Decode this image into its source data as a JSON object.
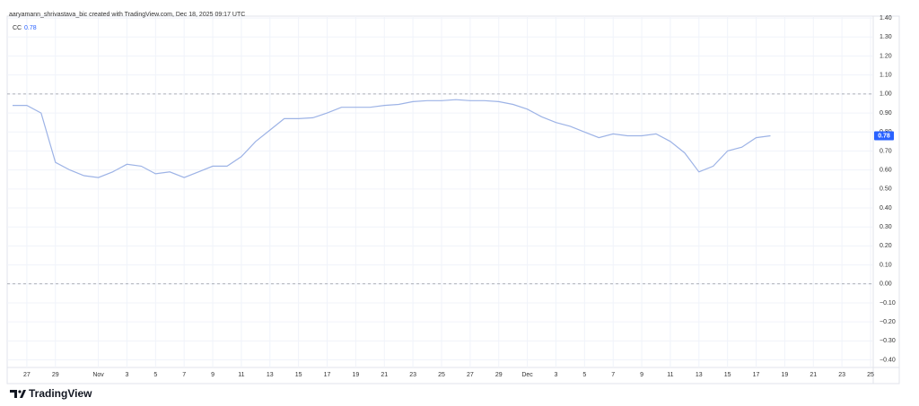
{
  "header": {
    "attribution": "aaryamann_shrivastava_bic created with TradingView.com, Dec 18, 2025 09:17 UTC"
  },
  "footer": {
    "brand": "TradingView"
  },
  "chart_data": {
    "type": "line",
    "x": [
      "2025-10-26",
      "2025-10-27",
      "2025-10-28",
      "2025-10-29",
      "2025-10-30",
      "2025-10-31",
      "2025-11-01",
      "2025-11-02",
      "2025-11-03",
      "2025-11-04",
      "2025-11-05",
      "2025-11-06",
      "2025-11-07",
      "2025-11-08",
      "2025-11-09",
      "2025-11-10",
      "2025-11-11",
      "2025-11-12",
      "2025-11-13",
      "2025-11-14",
      "2025-11-15",
      "2025-11-16",
      "2025-11-17",
      "2025-11-18",
      "2025-11-19",
      "2025-11-20",
      "2025-11-21",
      "2025-11-22",
      "2025-11-23",
      "2025-11-24",
      "2025-11-25",
      "2025-11-26",
      "2025-11-27",
      "2025-11-28",
      "2025-11-29",
      "2025-11-30",
      "2025-12-01",
      "2025-12-02",
      "2025-12-03",
      "2025-12-04",
      "2025-12-05",
      "2025-12-06",
      "2025-12-07",
      "2025-12-08",
      "2025-12-09",
      "2025-12-10",
      "2025-12-11",
      "2025-12-12",
      "2025-12-13",
      "2025-12-14",
      "2025-12-15",
      "2025-12-16",
      "2025-12-17",
      "2025-12-18"
    ],
    "series": [
      {
        "name": "CC",
        "color": "#9db3e6",
        "values": [
          0.94,
          0.94,
          0.9,
          0.64,
          0.6,
          0.57,
          0.56,
          0.59,
          0.63,
          0.62,
          0.58,
          0.59,
          0.56,
          0.59,
          0.62,
          0.62,
          0.67,
          0.75,
          0.81,
          0.87,
          0.87,
          0.875,
          0.9,
          0.93,
          0.93,
          0.93,
          0.94,
          0.945,
          0.96,
          0.965,
          0.965,
          0.97,
          0.965,
          0.965,
          0.96,
          0.945,
          0.92,
          0.88,
          0.85,
          0.83,
          0.8,
          0.77,
          0.79,
          0.78,
          0.78,
          0.79,
          0.75,
          0.69,
          0.59,
          0.62,
          0.7,
          0.72,
          0.77,
          0.78
        ]
      }
    ],
    "xlim": [
      "2025-10-25T15:00:00Z",
      "2025-12-25T03:00:00Z"
    ],
    "xticks": [
      {
        "value": "2025-10-27",
        "label": "27"
      },
      {
        "value": "2025-10-29",
        "label": "29"
      },
      {
        "value": "2025-11-01",
        "label": "Nov"
      },
      {
        "value": "2025-11-03",
        "label": "3"
      },
      {
        "value": "2025-11-05",
        "label": "5"
      },
      {
        "value": "2025-11-07",
        "label": "7"
      },
      {
        "value": "2025-11-09",
        "label": "9"
      },
      {
        "value": "2025-11-11",
        "label": "11"
      },
      {
        "value": "2025-11-13",
        "label": "13"
      },
      {
        "value": "2025-11-15",
        "label": "15"
      },
      {
        "value": "2025-11-17",
        "label": "17"
      },
      {
        "value": "2025-11-19",
        "label": "19"
      },
      {
        "value": "2025-11-21",
        "label": "21"
      },
      {
        "value": "2025-11-23",
        "label": "23"
      },
      {
        "value": "2025-11-25",
        "label": "25"
      },
      {
        "value": "2025-11-27",
        "label": "27"
      },
      {
        "value": "2025-11-29",
        "label": "29"
      },
      {
        "value": "2025-12-01",
        "label": "Dec"
      },
      {
        "value": "2025-12-03",
        "label": "3"
      },
      {
        "value": "2025-12-05",
        "label": "5"
      },
      {
        "value": "2025-12-07",
        "label": "7"
      },
      {
        "value": "2025-12-09",
        "label": "9"
      },
      {
        "value": "2025-12-11",
        "label": "11"
      },
      {
        "value": "2025-12-13",
        "label": "13"
      },
      {
        "value": "2025-12-15",
        "label": "15"
      },
      {
        "value": "2025-12-17",
        "label": "17"
      },
      {
        "value": "2025-12-19",
        "label": "19"
      },
      {
        "value": "2025-12-21",
        "label": "21"
      },
      {
        "value": "2025-12-23",
        "label": "23"
      },
      {
        "value": "2025-12-25",
        "label": "25"
      }
    ],
    "ylim": [
      -0.44,
      1.41
    ],
    "yticks": [
      {
        "value": 1.4,
        "label": "1.40"
      },
      {
        "value": 1.3,
        "label": "1.30"
      },
      {
        "value": 1.2,
        "label": "1.20"
      },
      {
        "value": 1.1,
        "label": "1.10"
      },
      {
        "value": 1,
        "label": "1.00"
      },
      {
        "value": 0.9,
        "label": "0.90"
      },
      {
        "value": 0.8,
        "label": "0.80"
      },
      {
        "value": 0.7,
        "label": "0.70"
      },
      {
        "value": 0.6,
        "label": "0.60"
      },
      {
        "value": 0.5,
        "label": "0.50"
      },
      {
        "value": 0.4,
        "label": "0.40"
      },
      {
        "value": 0.3,
        "label": "0.30"
      },
      {
        "value": 0.2,
        "label": "0.20"
      },
      {
        "value": 0.1,
        "label": "0.10"
      },
      {
        "value": 0,
        "label": "0.00"
      },
      {
        "value": -0.1,
        "label": "−0.10"
      },
      {
        "value": -0.2,
        "label": "−0.20"
      },
      {
        "value": -0.3,
        "label": "−0.30"
      },
      {
        "value": -0.4,
        "label": "−0.40"
      }
    ],
    "hlines": [
      1,
      0
    ],
    "grid": true
  }
}
